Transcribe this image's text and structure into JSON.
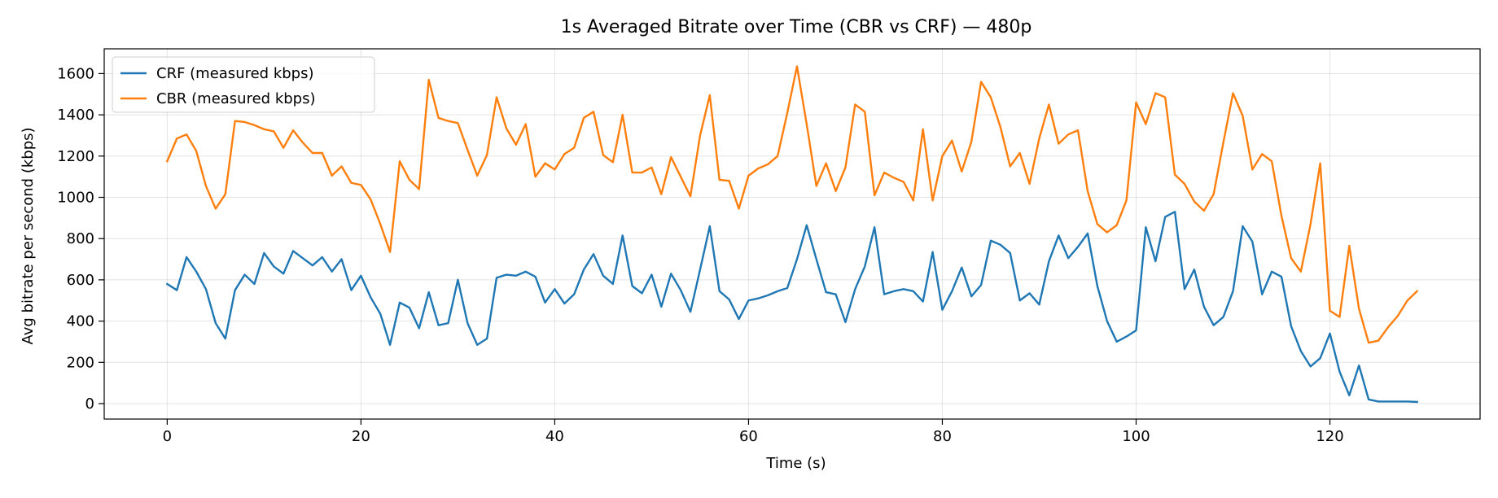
{
  "chart_data": {
    "type": "line",
    "title": "1s Averaged Bitrate over Time (CBR vs CRF) — 480p",
    "xlabel": "Time (s)",
    "ylabel": "Avg bitrate per second (kbps)",
    "xlim": [
      -6.5,
      135.5
    ],
    "ylim": [
      -75,
      1720
    ],
    "xticks": [
      0,
      20,
      40,
      60,
      80,
      100,
      120
    ],
    "yticks": [
      0,
      200,
      400,
      600,
      800,
      1000,
      1200,
      1400,
      1600
    ],
    "grid": true,
    "legend_position": "top-left",
    "series": [
      {
        "name": "CRF (measured kbps)",
        "color": "#1f77b4",
        "x": [
          0,
          1,
          2,
          3,
          4,
          5,
          6,
          7,
          8,
          9,
          10,
          11,
          12,
          13,
          14,
          15,
          16,
          17,
          18,
          19,
          20,
          21,
          22,
          23,
          24,
          25,
          26,
          27,
          28,
          29,
          30,
          31,
          32,
          33,
          34,
          35,
          36,
          37,
          38,
          39,
          40,
          41,
          42,
          43,
          44,
          45,
          46,
          47,
          48,
          49,
          50,
          51,
          52,
          53,
          54,
          55,
          56,
          57,
          58,
          59,
          60,
          61,
          62,
          63,
          64,
          65,
          66,
          67,
          68,
          69,
          70,
          71,
          72,
          73,
          74,
          75,
          76,
          77,
          78,
          79,
          80,
          81,
          82,
          83,
          84,
          85,
          86,
          87,
          88,
          89,
          90,
          91,
          92,
          93,
          94,
          95,
          96,
          97,
          98,
          99,
          100,
          101,
          102,
          103,
          104,
          105,
          106,
          107,
          108,
          109,
          110,
          111,
          112,
          113,
          114,
          115,
          116,
          117,
          118,
          119,
          120,
          121,
          122,
          123,
          124,
          125,
          126,
          127,
          128,
          129
        ],
        "values": [
          580,
          550,
          710,
          640,
          555,
          390,
          315,
          550,
          625,
          580,
          730,
          665,
          630,
          740,
          705,
          670,
          710,
          640,
          700,
          550,
          620,
          515,
          435,
          285,
          490,
          465,
          365,
          540,
          380,
          390,
          600,
          390,
          285,
          315,
          610,
          625,
          620,
          640,
          615,
          490,
          555,
          485,
          530,
          650,
          725,
          620,
          580,
          815,
          570,
          535,
          625,
          470,
          630,
          550,
          445,
          650,
          860,
          545,
          505,
          410,
          500,
          510,
          525,
          545,
          560,
          700,
          865,
          700,
          540,
          530,
          395,
          555,
          665,
          855,
          530,
          545,
          555,
          545,
          495,
          735,
          455,
          545,
          660,
          520,
          575,
          790,
          770,
          730,
          500,
          535,
          480,
          690,
          815,
          705,
          760,
          825,
          570,
          400,
          300,
          325,
          355,
          855,
          690,
          905,
          930,
          555,
          650,
          470,
          380,
          420,
          545,
          860,
          785,
          530,
          640,
          615,
          375,
          255,
          180,
          220,
          340,
          155,
          40,
          185,
          20,
          10,
          10,
          10,
          10,
          8
        ]
      },
      {
        "name": "CBR (measured kbps)",
        "color": "#ff7f0e",
        "x": [
          0,
          1,
          2,
          3,
          4,
          5,
          6,
          7,
          8,
          9,
          10,
          11,
          12,
          13,
          14,
          15,
          16,
          17,
          18,
          19,
          20,
          21,
          22,
          23,
          24,
          25,
          26,
          27,
          28,
          29,
          30,
          31,
          32,
          33,
          34,
          35,
          36,
          37,
          38,
          39,
          40,
          41,
          42,
          43,
          44,
          45,
          46,
          47,
          48,
          49,
          50,
          51,
          52,
          53,
          54,
          55,
          56,
          57,
          58,
          59,
          60,
          61,
          62,
          63,
          64,
          65,
          66,
          67,
          68,
          69,
          70,
          71,
          72,
          73,
          74,
          75,
          76,
          77,
          78,
          79,
          80,
          81,
          82,
          83,
          84,
          85,
          86,
          87,
          88,
          89,
          90,
          91,
          92,
          93,
          94,
          95,
          96,
          97,
          98,
          99,
          100,
          101,
          102,
          103,
          104,
          105,
          106,
          107,
          108,
          109,
          110,
          111,
          112,
          113,
          114,
          115,
          116,
          117,
          118,
          119,
          120,
          121,
          122,
          123,
          124,
          125,
          126,
          127,
          128,
          129
        ],
        "values": [
          1175,
          1285,
          1305,
          1225,
          1055,
          945,
          1015,
          1370,
          1365,
          1350,
          1330,
          1320,
          1240,
          1325,
          1265,
          1215,
          1215,
          1105,
          1150,
          1070,
          1060,
          990,
          870,
          735,
          1175,
          1085,
          1040,
          1570,
          1385,
          1370,
          1360,
          1230,
          1105,
          1205,
          1485,
          1335,
          1255,
          1355,
          1100,
          1165,
          1135,
          1210,
          1240,
          1385,
          1415,
          1205,
          1170,
          1400,
          1120,
          1120,
          1145,
          1015,
          1195,
          1100,
          1005,
          1300,
          1495,
          1085,
          1080,
          945,
          1105,
          1140,
          1160,
          1200,
          1410,
          1635,
          1355,
          1055,
          1165,
          1030,
          1145,
          1450,
          1415,
          1010,
          1120,
          1095,
          1075,
          985,
          1330,
          985,
          1200,
          1275,
          1125,
          1270,
          1560,
          1485,
          1340,
          1150,
          1215,
          1065,
          1285,
          1450,
          1260,
          1305,
          1325,
          1030,
          870,
          830,
          865,
          985,
          1460,
          1355,
          1505,
          1485,
          1110,
          1065,
          980,
          935,
          1015,
          1265,
          1505,
          1395,
          1135,
          1210,
          1175,
          910,
          705,
          640,
          870,
          1165,
          450,
          420,
          765,
          460,
          295,
          305,
          370,
          425,
          500,
          545
        ]
      }
    ]
  }
}
